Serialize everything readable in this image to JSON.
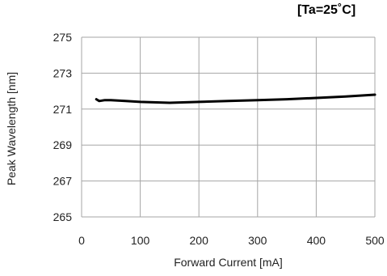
{
  "chart_data": {
    "type": "line",
    "title": "",
    "condition": "[Ta=25˚C]",
    "xlabel": "Forward Current [mA]",
    "ylabel": "Peak Wavelength [nm]",
    "xlim": [
      0,
      500
    ],
    "ylim": [
      265,
      275
    ],
    "x_ticks": [
      0,
      100,
      200,
      300,
      400,
      500
    ],
    "y_ticks": [
      265,
      267,
      269,
      271,
      273,
      275
    ],
    "grid": true,
    "legend": "none",
    "line_color": "#000000",
    "series": [
      {
        "x": [
          25,
          30,
          40,
          50,
          75,
          100,
          150,
          200,
          250,
          300,
          350,
          400,
          450,
          500
        ],
        "y": [
          271.55,
          271.45,
          271.5,
          271.5,
          271.45,
          271.4,
          271.35,
          271.4,
          271.45,
          271.5,
          271.55,
          271.62,
          271.7,
          271.8
        ]
      }
    ]
  }
}
